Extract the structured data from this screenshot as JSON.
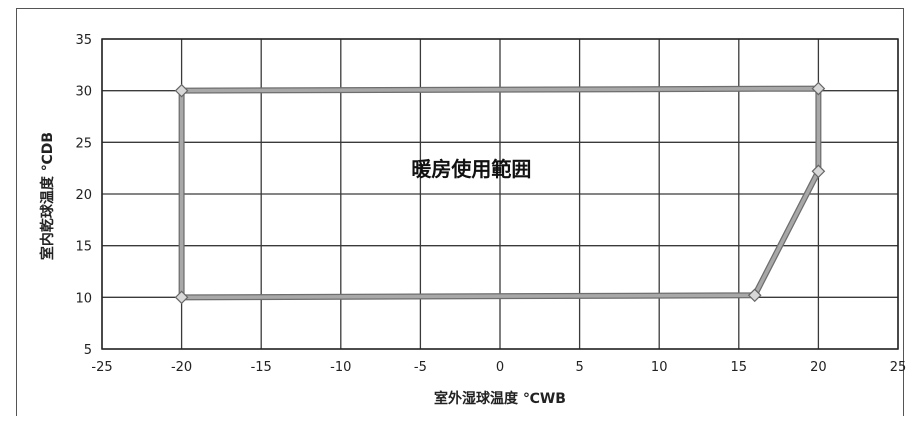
{
  "chart_data": {
    "type": "line",
    "title": "",
    "xlabel": "室外湿球温度 ℃WB",
    "ylabel": "室内乾球温度 ℃DB",
    "xlim": [
      -25,
      25
    ],
    "ylim": [
      5,
      35
    ],
    "xticks": [
      -25,
      -20,
      -15,
      -10,
      -5,
      0,
      5,
      10,
      15,
      20,
      25
    ],
    "yticks": [
      5,
      10,
      15,
      20,
      25,
      30,
      35
    ],
    "xtick_labels": [
      "-25",
      "-20",
      "-15",
      "-10",
      "-5",
      "0",
      "5",
      "10",
      "15",
      "20",
      "25"
    ],
    "ytick_labels": [
      "5",
      "10",
      "15",
      "20",
      "25",
      "30",
      "35"
    ],
    "grid": true,
    "series": [
      {
        "x": [
          -20,
          20,
          20,
          16,
          -20,
          -20
        ],
        "y": [
          30,
          30.2,
          22.2,
          10.2,
          10,
          30
        ],
        "color": "#a8a8a8",
        "marker": "diamond"
      }
    ],
    "annotations": [
      {
        "text": "暖房使用範囲",
        "x": -1.8,
        "y": 22.4
      }
    ]
  }
}
